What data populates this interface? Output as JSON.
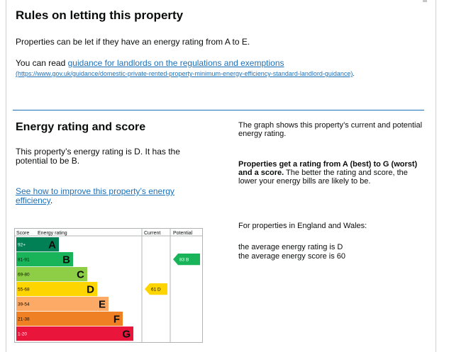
{
  "letting": {
    "heading": "Rules on letting this property",
    "intro": "Properties can be let if they have an energy rating from A to E.",
    "read_prefix": "You can read ",
    "guidance_link": "guidance for landlords on the regulations and exemptions",
    "guidance_url": "(https://www.gov.uk/guidance/domestic-private-rented-property-minimum-energy-efficiency-standard-landlord-guidance)",
    "read_suffix": "."
  },
  "energy": {
    "heading": "Energy rating and score",
    "rating_text": "This property’s energy rating is D. It has the potential to be B.",
    "improve_link": "See how to improve this property’s energy efficiency",
    "improve_suffix": ".",
    "graph_text": "The graph shows this property’s current and potential energy rating.",
    "bold_text": "Properties get a rating from A (best) to G (worst) and a score.",
    "bold_followup": " The better the rating and score, the lower your energy bills are likely to be.",
    "england_text": "For properties in England and Wales:",
    "avg_rating": "the average energy rating is D",
    "avg_score": "the average energy score is 60"
  },
  "chart_data": {
    "type": "table",
    "headers": {
      "score": "Score",
      "rating": "Energy rating",
      "current": "Current",
      "potential": "Potential"
    },
    "bands": [
      {
        "range": "92+",
        "letter": "A",
        "color": "#008054"
      },
      {
        "range": "81-91",
        "letter": "B",
        "color": "#19b459"
      },
      {
        "range": "69-80",
        "letter": "C",
        "color": "#8dce46"
      },
      {
        "range": "55-68",
        "letter": "D",
        "color": "#ffd500"
      },
      {
        "range": "39-54",
        "letter": "E",
        "color": "#fcaa65"
      },
      {
        "range": "21-38",
        "letter": "F",
        "color": "#ef8023"
      },
      {
        "range": "1-20",
        "letter": "G",
        "color": "#e9153b"
      }
    ],
    "current": {
      "score": 61,
      "letter": "D",
      "label": "61  D",
      "color": "#ffd500"
    },
    "potential": {
      "score": 83,
      "letter": "B",
      "label": "83  B",
      "color": "#19b459"
    }
  }
}
